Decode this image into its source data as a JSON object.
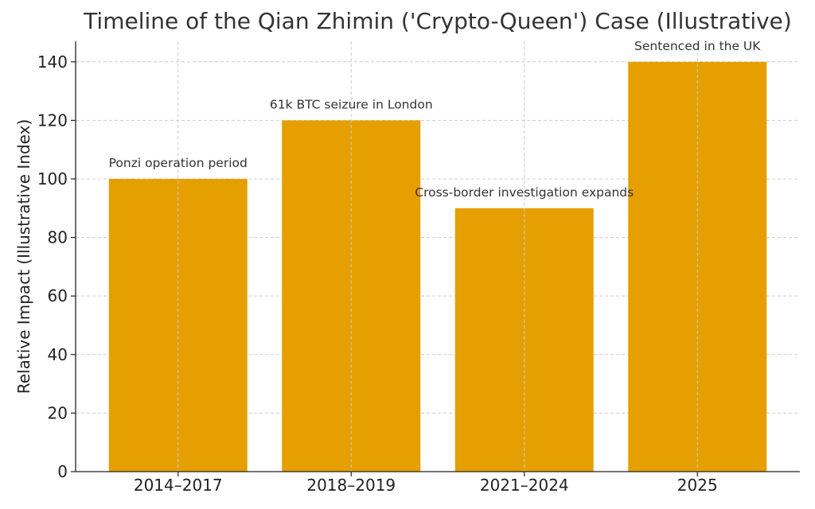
{
  "chart_data": {
    "type": "bar",
    "title": "Timeline of the Qian Zhimin ('Crypto-Queen') Case (Illustrative)",
    "xlabel": "",
    "ylabel": "Relative Impact (Illustrative Index)",
    "categories": [
      "2014–2017",
      "2018–2019",
      "2021–2024",
      "2025"
    ],
    "values": [
      100,
      120,
      90,
      140
    ],
    "annotations": [
      "Ponzi operation period",
      "61k BTC seizure in London",
      "Cross-border investigation expands",
      "Sentenced in the UK"
    ],
    "ylim": [
      0,
      147
    ],
    "yticks": [
      0,
      20,
      40,
      60,
      80,
      100,
      120,
      140
    ],
    "ytick_labels": [
      "0",
      "20",
      "40",
      "60",
      "80",
      "100",
      "120",
      "140"
    ],
    "grid": true,
    "bar_color": "#E59F00"
  }
}
